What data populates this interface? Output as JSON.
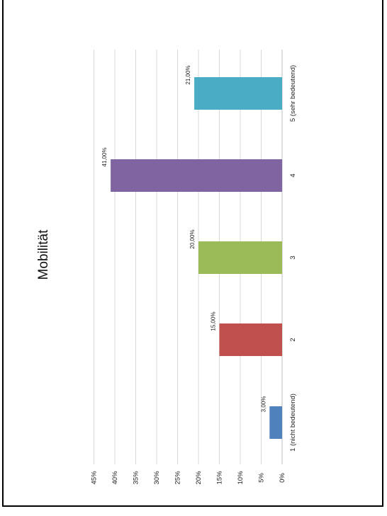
{
  "chart_data": {
    "type": "bar",
    "orientation": "rotated-90",
    "title": "Mobilität",
    "categories": [
      "1 (nicht bedeutend)",
      "2",
      "3",
      "4",
      "5 (sehr bedeutend)"
    ],
    "values": [
      3,
      15,
      20,
      41,
      21
    ],
    "data_labels": [
      "3,00%",
      "15,00%",
      "20,00%",
      "41,00%",
      "21,00%"
    ],
    "colors": [
      "#4f81bd",
      "#c0504d",
      "#9bbb59",
      "#8064a2",
      "#4bacc6"
    ],
    "y_ticks": [
      "0%",
      "5%",
      "10%",
      "15%",
      "20%",
      "25%",
      "30%",
      "35%",
      "40%",
      "45%"
    ],
    "ylim": [
      0,
      45
    ],
    "xlabel": "",
    "ylabel": "",
    "grid": true,
    "legend": "none"
  }
}
